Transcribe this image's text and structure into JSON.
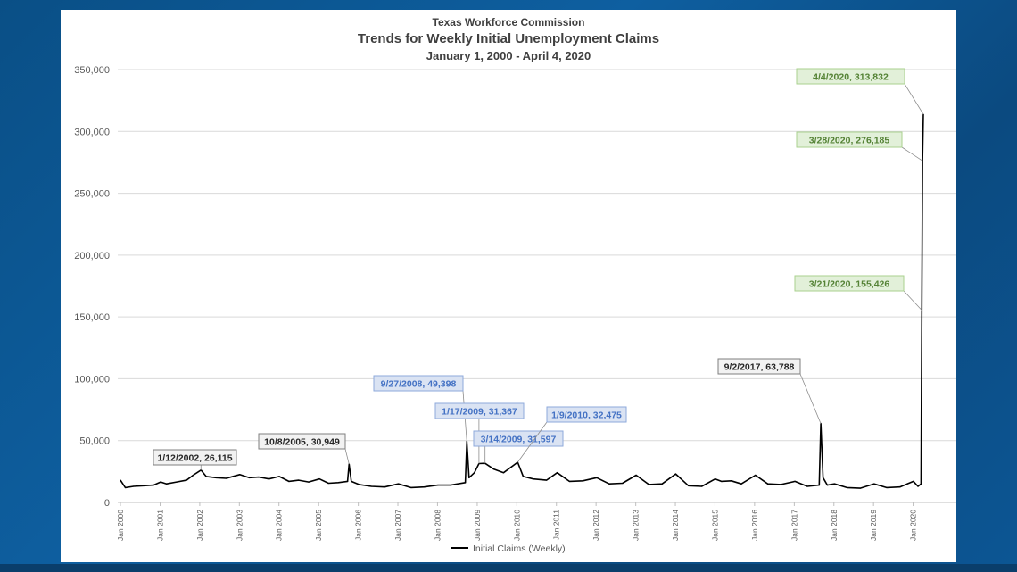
{
  "header": {
    "title": "Texas Workforce Commission",
    "subtitle": "Trends for Weekly Initial Unemployment Claims",
    "date_range": "January  1, 2000 - April 4, 2020"
  },
  "legend": {
    "label": "Initial Claims (Weekly)"
  },
  "chart_data": {
    "type": "line",
    "title": "Trends for Weekly Initial Unemployment Claims",
    "xlabel": "",
    "ylabel": "",
    "ylim": [
      0,
      350000
    ],
    "xlim": [
      "2000-01-01",
      "2020-04-04"
    ],
    "grid": true,
    "legend_position": "bottom",
    "y_ticks": [
      "0",
      "50,000",
      "100,000",
      "150,000",
      "200,000",
      "250,000",
      "300,000",
      "350,000"
    ],
    "x_ticks": [
      "Jan 2000",
      "Jan 2001",
      "Jan 2002",
      "Jan 2003",
      "Jan 2004",
      "Jan 2005",
      "Jan 2006",
      "Jan 2007",
      "Jan 2008",
      "Jan 2009",
      "Jan 2010",
      "Jan 2011",
      "Jan 2012",
      "Jan 2013",
      "Jan 2014",
      "Jan 2015",
      "Jan 2016",
      "Jan 2017",
      "Jan 2018",
      "Jan 2019",
      "Jan 2020"
    ],
    "series": [
      {
        "name": "Initial Claims (Weekly)",
        "color": "#000000",
        "points": [
          [
            "2000-01-01",
            18000
          ],
          [
            "2000-02-15",
            12000
          ],
          [
            "2000-05-01",
            13000
          ],
          [
            "2000-08-01",
            13500
          ],
          [
            "2000-11-01",
            14000
          ],
          [
            "2001-01-06",
            16500
          ],
          [
            "2001-03-01",
            15000
          ],
          [
            "2001-06-01",
            16500
          ],
          [
            "2001-09-01",
            18000
          ],
          [
            "2001-11-01",
            22000
          ],
          [
            "2002-01-12",
            26115
          ],
          [
            "2002-03-01",
            21000
          ],
          [
            "2002-06-01",
            20000
          ],
          [
            "2002-09-01",
            19500
          ],
          [
            "2003-01-04",
            22500
          ],
          [
            "2003-04-01",
            20000
          ],
          [
            "2003-07-01",
            20500
          ],
          [
            "2003-10-01",
            19000
          ],
          [
            "2004-01-03",
            21000
          ],
          [
            "2004-04-01",
            17000
          ],
          [
            "2004-07-01",
            18000
          ],
          [
            "2004-10-01",
            16500
          ],
          [
            "2005-01-08",
            19000
          ],
          [
            "2005-04-01",
            15500
          ],
          [
            "2005-07-01",
            16000
          ],
          [
            "2005-09-24",
            17000
          ],
          [
            "2005-10-08",
            30949
          ],
          [
            "2005-10-29",
            17000
          ],
          [
            "2006-01-07",
            14500
          ],
          [
            "2006-05-01",
            13000
          ],
          [
            "2006-09-01",
            12500
          ],
          [
            "2007-01-06",
            15000
          ],
          [
            "2007-05-01",
            12000
          ],
          [
            "2007-09-01",
            12500
          ],
          [
            "2008-01-05",
            14000
          ],
          [
            "2008-05-01",
            14000
          ],
          [
            "2008-09-13",
            16000
          ],
          [
            "2008-09-27",
            49398
          ],
          [
            "2008-10-18",
            20000
          ],
          [
            "2008-12-06",
            24000
          ],
          [
            "2009-01-17",
            31367
          ],
          [
            "2009-03-14",
            31597
          ],
          [
            "2009-06-01",
            27000
          ],
          [
            "2009-09-01",
            24000
          ],
          [
            "2010-01-09",
            32475
          ],
          [
            "2010-03-01",
            21000
          ],
          [
            "2010-06-01",
            19000
          ],
          [
            "2010-10-01",
            18000
          ],
          [
            "2011-01-08",
            24000
          ],
          [
            "2011-05-01",
            17000
          ],
          [
            "2011-09-01",
            17500
          ],
          [
            "2012-01-07",
            20000
          ],
          [
            "2012-05-01",
            15000
          ],
          [
            "2012-09-01",
            15500
          ],
          [
            "2013-01-05",
            22000
          ],
          [
            "2013-05-01",
            14500
          ],
          [
            "2013-09-01",
            15000
          ],
          [
            "2014-01-04",
            23000
          ],
          [
            "2014-05-01",
            13500
          ],
          [
            "2014-09-01",
            13000
          ],
          [
            "2015-01-03",
            19000
          ],
          [
            "2015-03-01",
            17000
          ],
          [
            "2015-06-01",
            17500
          ],
          [
            "2015-09-01",
            15000
          ],
          [
            "2016-01-09",
            22000
          ],
          [
            "2016-05-01",
            15000
          ],
          [
            "2016-09-01",
            14500
          ],
          [
            "2017-01-07",
            17000
          ],
          [
            "2017-05-01",
            13000
          ],
          [
            "2017-08-19",
            14000
          ],
          [
            "2017-09-02",
            63788
          ],
          [
            "2017-09-23",
            20000
          ],
          [
            "2017-11-01",
            14000
          ],
          [
            "2018-01-06",
            15000
          ],
          [
            "2018-05-01",
            12000
          ],
          [
            "2018-09-01",
            11500
          ],
          [
            "2019-01-05",
            15000
          ],
          [
            "2019-05-01",
            12000
          ],
          [
            "2019-09-01",
            12500
          ],
          [
            "2020-01-04",
            17000
          ],
          [
            "2020-02-15",
            13000
          ],
          [
            "2020-03-14",
            15000
          ],
          [
            "2020-03-21",
            155426
          ],
          [
            "2020-03-28",
            276185
          ],
          [
            "2020-04-04",
            313832
          ]
        ]
      }
    ],
    "annotations": [
      {
        "text": "1/12/2002, 26,115",
        "x": "2002-01-12",
        "y": 26115,
        "style": "gray"
      },
      {
        "text": "10/8/2005, 30,949",
        "x": "2005-10-08",
        "y": 30949,
        "style": "gray"
      },
      {
        "text": "9/27/2008, 49,398",
        "x": "2008-09-27",
        "y": 49398,
        "style": "blue"
      },
      {
        "text": "1/17/2009, 31,367",
        "x": "2009-01-17",
        "y": 31367,
        "style": "blue"
      },
      {
        "text": "3/14/2009, 31,597",
        "x": "2009-03-14",
        "y": 31597,
        "style": "blue"
      },
      {
        "text": "1/9/2010, 32,475",
        "x": "2010-01-09",
        "y": 32475,
        "style": "blue"
      },
      {
        "text": "9/2/2017, 63,788",
        "x": "2017-09-02",
        "y": 63788,
        "style": "gray"
      },
      {
        "text": "3/21/2020, 155,426",
        "x": "2020-03-21",
        "y": 155426,
        "style": "green"
      },
      {
        "text": "3/28/2020, 276,185",
        "x": "2020-03-28",
        "y": 276185,
        "style": "green"
      },
      {
        "text": "4/4/2020, 313,832",
        "x": "2020-04-04",
        "y": 313832,
        "style": "green"
      }
    ]
  },
  "colors": {
    "line": "#000000",
    "grid": "#d9d9d9",
    "gray_box_fill": "#f2f2f2",
    "gray_box_text": "#262626",
    "blue_box_fill": "#dae3f3",
    "blue_box_text": "#4472c4",
    "green_box_fill": "#e2f0d9",
    "green_box_text": "#548235"
  }
}
